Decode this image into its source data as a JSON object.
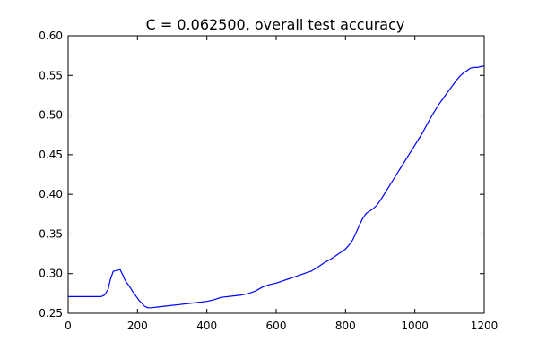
{
  "chart_data": {
    "type": "line",
    "title": "C = 0.062500, overall test accuracy",
    "xlabel": "",
    "ylabel": "",
    "xlim": [
      0,
      1200
    ],
    "ylim": [
      0.25,
      0.6
    ],
    "xticks": [
      0,
      200,
      400,
      600,
      800,
      1000,
      1200
    ],
    "yticks": [
      0.25,
      0.3,
      0.35,
      0.4,
      0.45,
      0.5,
      0.55,
      0.6
    ],
    "xtick_labels": [
      "0",
      "200",
      "400",
      "600",
      "800",
      "1000",
      "1200"
    ],
    "ytick_labels": [
      "0.25",
      "0.30",
      "0.35",
      "0.40",
      "0.45",
      "0.50",
      "0.55",
      "0.60"
    ],
    "grid": false,
    "legend": "none",
    "series": [
      {
        "color": "#0000ff",
        "x": [
          0,
          20,
          40,
          60,
          80,
          95,
          105,
          115,
          122,
          130,
          140,
          150,
          158,
          165,
          175,
          190,
          205,
          220,
          230,
          240,
          260,
          280,
          300,
          320,
          340,
          360,
          380,
          400,
          420,
          440,
          460,
          480,
          500,
          520,
          540,
          560,
          580,
          600,
          620,
          640,
          660,
          680,
          700,
          720,
          740,
          760,
          780,
          800,
          810,
          820,
          830,
          840,
          850,
          860,
          870,
          880,
          890,
          900,
          910,
          920,
          930,
          940,
          950,
          960,
          970,
          980,
          990,
          1000,
          1010,
          1020,
          1030,
          1040,
          1050,
          1060,
          1070,
          1080,
          1090,
          1100,
          1110,
          1120,
          1130,
          1140,
          1150,
          1160,
          1170,
          1180,
          1190,
          1200
        ],
        "y": [
          0.271,
          0.271,
          0.271,
          0.271,
          0.271,
          0.271,
          0.273,
          0.28,
          0.293,
          0.303,
          0.304,
          0.305,
          0.298,
          0.291,
          0.285,
          0.275,
          0.266,
          0.259,
          0.257,
          0.257,
          0.258,
          0.259,
          0.26,
          0.261,
          0.262,
          0.263,
          0.264,
          0.265,
          0.267,
          0.27,
          0.271,
          0.272,
          0.273,
          0.275,
          0.278,
          0.283,
          0.286,
          0.288,
          0.291,
          0.294,
          0.297,
          0.3,
          0.303,
          0.308,
          0.314,
          0.319,
          0.325,
          0.331,
          0.336,
          0.342,
          0.351,
          0.361,
          0.37,
          0.376,
          0.379,
          0.382,
          0.386,
          0.392,
          0.399,
          0.406,
          0.413,
          0.42,
          0.427,
          0.434,
          0.441,
          0.448,
          0.455,
          0.462,
          0.469,
          0.476,
          0.484,
          0.492,
          0.5,
          0.507,
          0.514,
          0.52,
          0.526,
          0.532,
          0.538,
          0.544,
          0.549,
          0.553,
          0.556,
          0.559,
          0.56,
          0.56,
          0.561,
          0.562
        ]
      }
    ]
  }
}
